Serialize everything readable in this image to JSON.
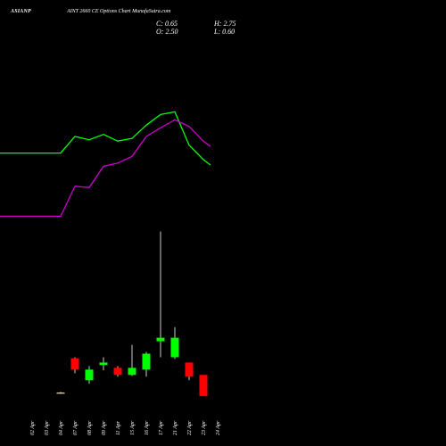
{
  "header": {
    "symbol": "ASIANP",
    "title": "AINT 2660  CE Options  Chart MunafaSutra.com",
    "c_label": "C: 0.65",
    "h_label": "H: 2.75",
    "o_label": "O: 2.50",
    "l_label": "L: 0.60"
  },
  "colors": {
    "background": "#000000",
    "bullish": "#00ff00",
    "bearish": "#ff0000",
    "ma_short": "#00ff00",
    "ma_long": "#cc00cc",
    "wick": "#ffffff"
  },
  "chart_data": {
    "type": "candlestick",
    "x": [
      "02 Apr",
      "03 Apr",
      "04 Apr",
      "07 Apr",
      "08 Apr",
      "09 Apr",
      "11 Apr",
      "15 Apr",
      "16 Apr",
      "17 Apr",
      "21 Apr",
      "22 Apr",
      "23 Apr",
      "24 Apr"
    ],
    "candles": [
      null,
      null,
      {
        "open": 0.55,
        "high": 0.57,
        "low": 0.52,
        "close": 0.55
      },
      {
        "open": 1.52,
        "high": 1.55,
        "low": 1.1,
        "close": 1.2
      },
      {
        "open": 0.9,
        "high": 1.3,
        "low": 0.8,
        "close": 1.2
      },
      {
        "open": 1.33,
        "high": 1.55,
        "low": 1.18,
        "close": 1.4
      },
      {
        "open": 1.25,
        "high": 1.3,
        "low": 1.0,
        "close": 1.05
      },
      {
        "open": 1.05,
        "high": 1.9,
        "low": 1.02,
        "close": 1.25
      },
      {
        "open": 1.2,
        "high": 1.7,
        "low": 1.0,
        "close": 1.65
      },
      {
        "open": 2.0,
        "high": 5.1,
        "low": 1.55,
        "close": 2.1
      },
      {
        "open": 1.55,
        "high": 2.4,
        "low": 1.5,
        "close": 2.1
      },
      {
        "open": 1.4,
        "high": 1.4,
        "low": 0.9,
        "close": 1.0
      },
      {
        "open": 1.05,
        "high": 1.05,
        "low": 0.45,
        "close": 0.45
      },
      null
    ],
    "moving_averages": [
      {
        "color": "#00ff00",
        "values": [
          3.2,
          3.2,
          3.2,
          3.45,
          3.4,
          3.48,
          3.38,
          3.42,
          3.62,
          3.78,
          3.82,
          3.32,
          3.1,
          null
        ]
      },
      {
        "color": "#cc00cc",
        "values": [
          2.25,
          2.25,
          2.25,
          2.7,
          2.68,
          3.0,
          3.05,
          3.15,
          3.45,
          3.58,
          3.7,
          3.6,
          3.38,
          null
        ]
      }
    ],
    "grid": false
  }
}
